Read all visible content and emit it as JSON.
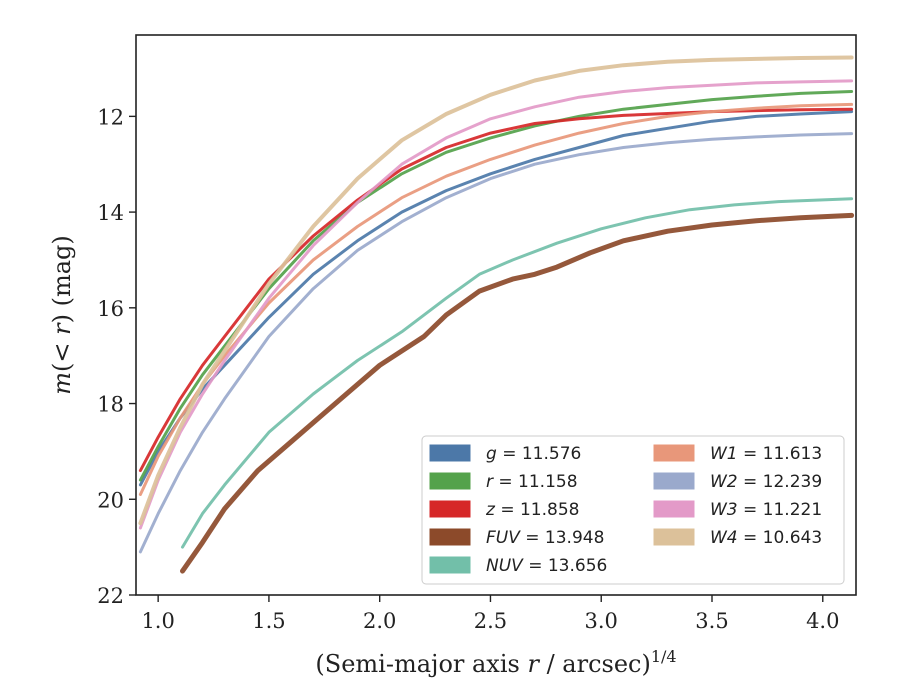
{
  "chart_data": {
    "type": "line",
    "xlabel_text": "(Semi-major axis ",
    "xlabel_var": "r",
    "xlabel_tail": " / arcsec)",
    "xlabel_sup": "1/4",
    "ylabel_var": "m",
    "ylabel_mid": "(< ",
    "ylabel_var2": "r",
    "ylabel_tail": ") (mag)",
    "xlim": [
      0.9,
      4.15
    ],
    "ylim": [
      22,
      10.3
    ],
    "y_inverted": true,
    "xticks": [
      1.0,
      1.5,
      2.0,
      2.5,
      3.0,
      3.5,
      4.0
    ],
    "xtick_labels": [
      "1.0",
      "1.5",
      "2.0",
      "2.5",
      "3.0",
      "3.5",
      "4.0"
    ],
    "yticks": [
      12,
      14,
      16,
      18,
      20,
      22
    ],
    "ytick_labels": [
      "12",
      "14",
      "16",
      "18",
      "20",
      "22"
    ],
    "grid": false,
    "legend_location": "lower-right",
    "legend_columns": 2,
    "series": [
      {
        "name": "g",
        "value_label": "= 11.576",
        "color": "#4c78a8",
        "x": [
          0.92,
          1.0,
          1.1,
          1.2,
          1.3,
          1.5,
          1.7,
          1.9,
          2.1,
          2.3,
          2.5,
          2.7,
          2.9,
          3.1,
          3.3,
          3.5,
          3.7,
          3.9,
          4.13
        ],
        "y": [
          19.7,
          19.0,
          18.3,
          17.7,
          17.2,
          16.2,
          15.3,
          14.6,
          14.0,
          13.55,
          13.2,
          12.9,
          12.65,
          12.4,
          12.25,
          12.1,
          12.0,
          11.95,
          11.9
        ]
      },
      {
        "name": "r",
        "value_label": "= 11.158",
        "color": "#54a24b",
        "x": [
          0.92,
          1.0,
          1.1,
          1.2,
          1.3,
          1.5,
          1.7,
          1.9,
          2.1,
          2.3,
          2.5,
          2.7,
          2.9,
          3.1,
          3.3,
          3.5,
          3.7,
          3.9,
          4.13
        ],
        "y": [
          19.6,
          18.9,
          18.1,
          17.4,
          16.8,
          15.6,
          14.6,
          13.8,
          13.2,
          12.75,
          12.45,
          12.2,
          12.0,
          11.85,
          11.75,
          11.65,
          11.58,
          11.52,
          11.48
        ]
      },
      {
        "name": "z",
        "value_label": "= 11.858",
        "color": "#d62728",
        "x": [
          0.92,
          1.0,
          1.1,
          1.2,
          1.3,
          1.5,
          1.7,
          1.9,
          2.1,
          2.3,
          2.5,
          2.7,
          2.9,
          3.1,
          3.3,
          3.5,
          3.7,
          3.9,
          4.13
        ],
        "y": [
          19.4,
          18.7,
          17.9,
          17.2,
          16.6,
          15.4,
          14.5,
          13.75,
          13.1,
          12.65,
          12.35,
          12.15,
          12.05,
          11.98,
          11.94,
          11.9,
          11.88,
          11.86,
          11.85
        ]
      },
      {
        "name": "FUV",
        "value_label": "= 13.948",
        "color": "#8c4a2a",
        "x": [
          1.11,
          1.2,
          1.3,
          1.45,
          1.6,
          1.8,
          2.0,
          2.2,
          2.3,
          2.45,
          2.6,
          2.7,
          2.8,
          2.95,
          3.1,
          3.3,
          3.5,
          3.7,
          3.9,
          4.13
        ],
        "y": [
          21.5,
          20.9,
          20.2,
          19.4,
          18.8,
          18.0,
          17.2,
          16.6,
          16.15,
          15.65,
          15.4,
          15.3,
          15.15,
          14.85,
          14.6,
          14.4,
          14.27,
          14.18,
          14.12,
          14.07
        ]
      },
      {
        "name": "NUV",
        "value_label": "= 13.656",
        "color": "#72bfa9",
        "x": [
          1.11,
          1.2,
          1.3,
          1.5,
          1.7,
          1.9,
          2.1,
          2.3,
          2.45,
          2.6,
          2.8,
          3.0,
          3.2,
          3.4,
          3.6,
          3.8,
          4.13
        ],
        "y": [
          21.0,
          20.3,
          19.7,
          18.6,
          17.8,
          17.1,
          16.5,
          15.8,
          15.3,
          15.0,
          14.65,
          14.35,
          14.12,
          13.95,
          13.85,
          13.78,
          13.72
        ]
      },
      {
        "name": "W1",
        "value_label": "= 11.613",
        "color": "#e8977a",
        "x": [
          0.92,
          1.0,
          1.1,
          1.2,
          1.3,
          1.5,
          1.7,
          1.9,
          2.1,
          2.3,
          2.5,
          2.7,
          2.9,
          3.1,
          3.3,
          3.5,
          3.7,
          3.9,
          4.13
        ],
        "y": [
          19.9,
          19.1,
          18.3,
          17.6,
          17.0,
          15.9,
          15.0,
          14.3,
          13.7,
          13.25,
          12.9,
          12.6,
          12.35,
          12.15,
          12.0,
          11.9,
          11.83,
          11.78,
          11.75
        ]
      },
      {
        "name": "W2",
        "value_label": "= 12.239",
        "color": "#9aa9cc",
        "x": [
          0.92,
          1.0,
          1.1,
          1.2,
          1.3,
          1.5,
          1.7,
          1.9,
          2.1,
          2.3,
          2.5,
          2.7,
          2.9,
          3.1,
          3.3,
          3.5,
          3.7,
          3.9,
          4.13
        ],
        "y": [
          21.1,
          20.3,
          19.4,
          18.6,
          17.9,
          16.6,
          15.6,
          14.8,
          14.2,
          13.7,
          13.3,
          13.0,
          12.8,
          12.65,
          12.55,
          12.48,
          12.43,
          12.39,
          12.36
        ]
      },
      {
        "name": "W3",
        "value_label": "= 11.221",
        "color": "#e39ac8",
        "x": [
          0.92,
          1.0,
          1.1,
          1.2,
          1.3,
          1.5,
          1.7,
          1.9,
          2.1,
          2.3,
          2.5,
          2.7,
          2.9,
          3.1,
          3.3,
          3.5,
          3.7,
          3.9,
          4.13
        ],
        "y": [
          20.6,
          19.6,
          18.6,
          17.8,
          17.1,
          15.8,
          14.7,
          13.8,
          13.0,
          12.45,
          12.05,
          11.8,
          11.6,
          11.48,
          11.4,
          11.35,
          11.3,
          11.28,
          11.26
        ]
      },
      {
        "name": "W4",
        "value_label": "= 10.643",
        "color": "#dcc19a",
        "x": [
          0.92,
          1.0,
          1.1,
          1.2,
          1.3,
          1.5,
          1.7,
          1.9,
          2.1,
          2.3,
          2.5,
          2.7,
          2.9,
          3.1,
          3.3,
          3.5,
          3.7,
          3.9,
          4.13
        ],
        "y": [
          20.5,
          19.5,
          18.5,
          17.6,
          16.9,
          15.5,
          14.3,
          13.3,
          12.5,
          11.95,
          11.55,
          11.25,
          11.05,
          10.93,
          10.86,
          10.82,
          10.8,
          10.78,
          10.77
        ]
      }
    ]
  }
}
